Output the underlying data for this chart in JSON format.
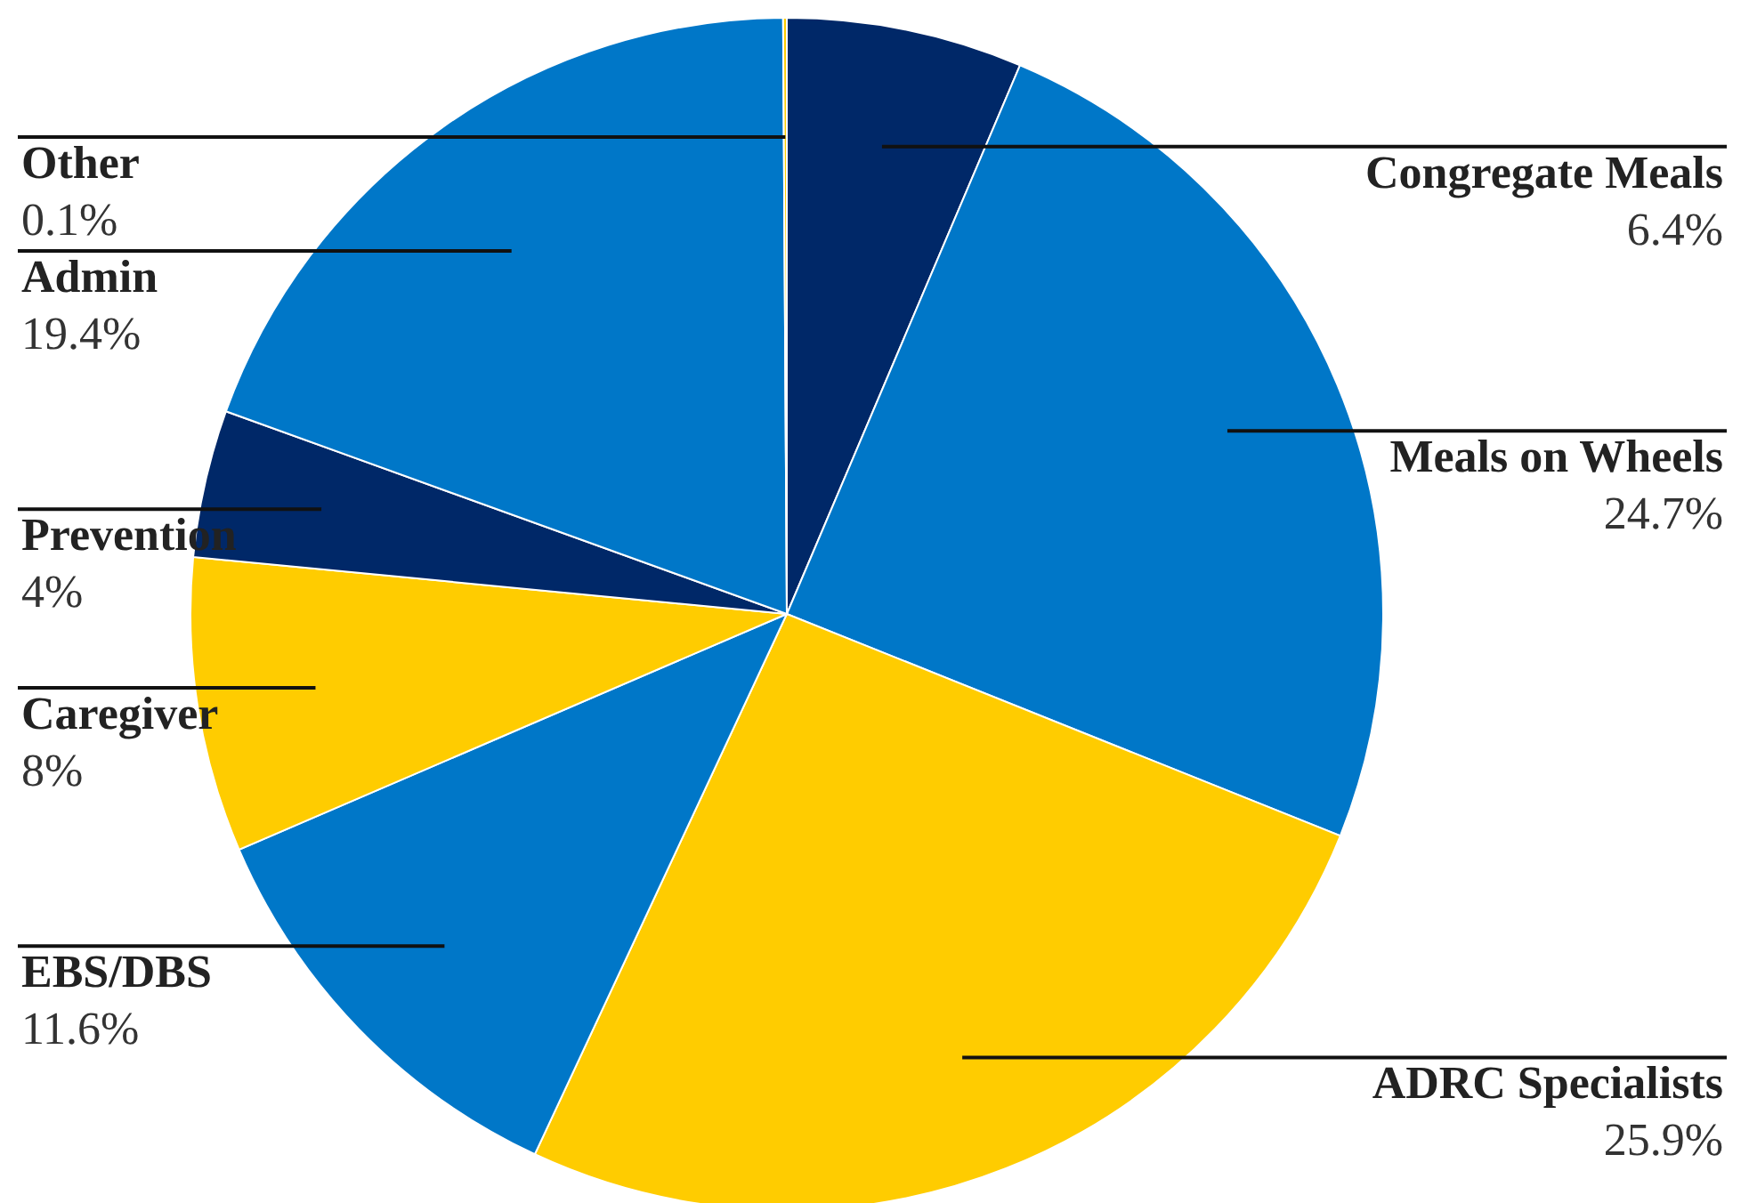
{
  "chart_data": {
    "type": "pie",
    "categories": [
      "Congregate Meals",
      "Meals on Wheels",
      "ADRC Specialists",
      "EBS/DBS",
      "Caregiver",
      "Prevention",
      "Admin",
      "Other"
    ],
    "values": [
      6.4,
      24.7,
      25.9,
      11.6,
      8,
      4,
      19.4,
      0.1
    ],
    "colors": [
      "#002868",
      "#0077c8",
      "#ffcc00",
      "#0077c8",
      "#ffcc00",
      "#002868",
      "#0077c8",
      "#ffcc00"
    ],
    "value_labels": [
      "6.4%",
      "24.7%",
      "25.9%",
      "11.6%",
      "8%",
      "4%",
      "19.4%",
      "0.1%"
    ]
  }
}
